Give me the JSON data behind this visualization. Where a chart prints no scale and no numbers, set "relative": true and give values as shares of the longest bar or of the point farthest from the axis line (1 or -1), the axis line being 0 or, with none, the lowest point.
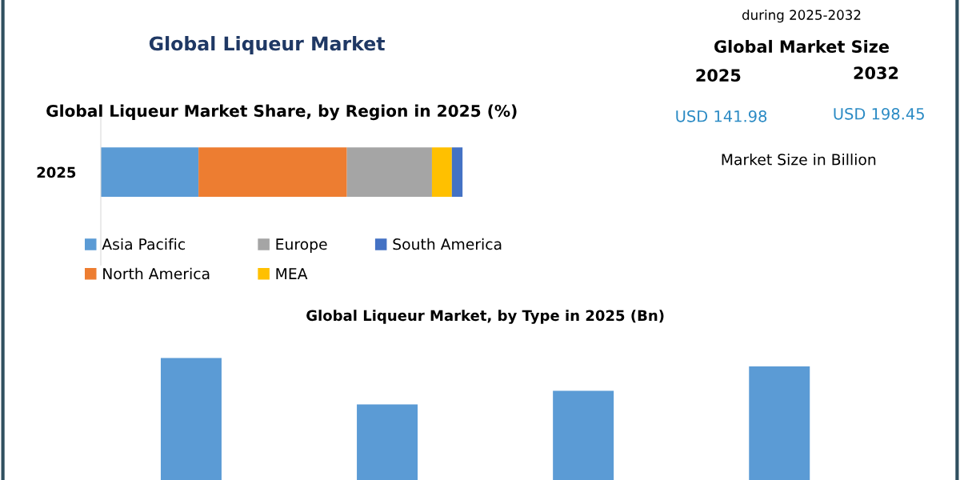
{
  "chart_data": [
    {
      "type": "bar",
      "title": "Global Liqueur Market",
      "subtitle": "Global Liqueur Market Share, by Region in 2025 (%)",
      "orientation": "horizontal",
      "stacked": true,
      "relative": true,
      "legend": "bottom",
      "categories": [
        "2025"
      ],
      "series": [
        {
          "name": "Asia Pacific",
          "color": "#5b9bd5",
          "values": [
            0.27
          ]
        },
        {
          "name": "North America",
          "color": "#ed7d31",
          "values": [
            0.41
          ]
        },
        {
          "name": "Europe",
          "color": "#a5a5a5",
          "values": [
            0.235
          ]
        },
        {
          "name": "MEA",
          "color": "#ffc000",
          "values": [
            0.055
          ]
        },
        {
          "name": "South America",
          "color": "#4472c4",
          "values": [
            0.03
          ]
        }
      ]
    },
    {
      "type": "other",
      "title": "Global Market Size",
      "annotations": [
        "during 2025-2032",
        "2025",
        "2032",
        "USD 141.98",
        "USD 198.45",
        "Market Size in Billion"
      ]
    },
    {
      "type": "bar",
      "title": "Global Liqueur Market, by Type in 2025 (Bn)",
      "relative": true,
      "categories": [
        null,
        null,
        null,
        null
      ],
      "color": "#5b9bd5",
      "values": [
        1,
        0.62,
        0.73,
        0.93
      ]
    }
  ]
}
